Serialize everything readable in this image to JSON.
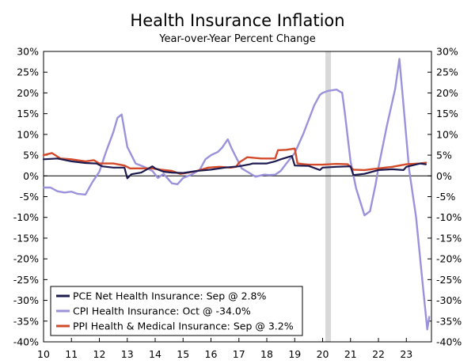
{
  "chart_data": {
    "type": "line",
    "title": "Health Insurance Inflation",
    "subtitle": "Year-over-Year Percent Change",
    "xlabel": "",
    "ylabel": "",
    "x_ticks": [
      "10",
      "11",
      "12",
      "13",
      "14",
      "15",
      "16",
      "17",
      "18",
      "19",
      "20",
      "21",
      "22",
      "23"
    ],
    "x_tick_values": [
      2010,
      2011,
      2012,
      2013,
      2014,
      2015,
      2016,
      2017,
      2018,
      2019,
      2020,
      2021,
      2022,
      2023
    ],
    "xlim": [
      2010,
      2023.9
    ],
    "y_ticks": [
      30,
      25,
      20,
      15,
      10,
      5,
      0,
      -5,
      -10,
      -15,
      -20,
      -25,
      -30,
      -35,
      -40
    ],
    "y_tick_labels": [
      "30%",
      "25%",
      "20%",
      "15%",
      "10%",
      "5%",
      "0%",
      "-5%",
      "-10%",
      "-15%",
      "-20%",
      "-25%",
      "-30%",
      "-35%",
      "-40%"
    ],
    "ylim": [
      -40,
      30
    ],
    "grid": false,
    "recession_shading": [
      [
        2020.1,
        2020.3
      ]
    ],
    "legend_position": "bottom-left",
    "series": [
      {
        "name": "PCE Net Health Insurance: Sep @ 2.8%",
        "color": "#1c1a4e",
        "x": [
          2010.0,
          2010.5,
          2011.0,
          2011.5,
          2011.9,
          2012.1,
          2012.5,
          2012.9,
          2013.0,
          2013.15,
          2013.5,
          2013.9,
          2014.0,
          2014.3,
          2014.6,
          2015.0,
          2015.5,
          2016.0,
          2016.5,
          2017.0,
          2017.4,
          2017.5,
          2018.0,
          2018.3,
          2018.5,
          2018.9,
          2019.0,
          2019.5,
          2019.9,
          2020.0,
          2020.5,
          2021.0,
          2021.1,
          2021.5,
          2022.0,
          2022.5,
          2022.9,
          2023.0,
          2023.5,
          2023.7
        ],
        "y": [
          4.0,
          4.2,
          3.5,
          3.1,
          3.0,
          2.3,
          2.0,
          2.0,
          -0.6,
          0.4,
          0.8,
          2.3,
          1.8,
          1.0,
          0.8,
          0.7,
          1.2,
          1.5,
          2.0,
          2.3,
          2.8,
          3.0,
          3.0,
          3.5,
          4.0,
          4.8,
          2.5,
          2.4,
          1.4,
          2.0,
          2.2,
          2.3,
          0.2,
          0.5,
          1.4,
          1.6,
          1.4,
          2.2,
          3.0,
          2.8
        ]
      },
      {
        "name": "CPI Health Insurance: Oct @ -34.0%",
        "color": "#9b92dc",
        "x": [
          2010.0,
          2010.25,
          2010.5,
          2010.75,
          2011.0,
          2011.2,
          2011.5,
          2011.75,
          2012.0,
          2012.25,
          2012.5,
          2012.65,
          2012.8,
          2013.0,
          2013.3,
          2013.6,
          2013.9,
          2014.1,
          2014.3,
          2014.6,
          2014.8,
          2015.0,
          2015.3,
          2015.6,
          2015.8,
          2016.0,
          2016.25,
          2016.4,
          2016.6,
          2016.75,
          2016.9,
          2017.1,
          2017.3,
          2017.6,
          2017.9,
          2018.1,
          2018.3,
          2018.5,
          2018.7,
          2019.0,
          2019.3,
          2019.5,
          2019.7,
          2019.9,
          2020.0,
          2020.2,
          2020.5,
          2020.7,
          2020.8,
          2021.0,
          2021.2,
          2021.5,
          2021.7,
          2021.9,
          2022.0,
          2022.3,
          2022.6,
          2022.75,
          2022.9,
          2023.1,
          2023.35,
          2023.6,
          2023.75,
          2023.82
        ],
        "y": [
          -2.8,
          -2.8,
          -3.7,
          -4.0,
          -3.8,
          -4.3,
          -4.5,
          -1.5,
          1.0,
          6.0,
          10.5,
          14.0,
          14.8,
          7.0,
          3.0,
          2.2,
          1.2,
          -0.5,
          0.5,
          -1.8,
          -2.0,
          -0.5,
          0.3,
          1.5,
          4.0,
          5.0,
          5.8,
          6.8,
          8.8,
          6.5,
          4.5,
          1.8,
          1.0,
          -0.2,
          0.3,
          0.2,
          0.3,
          1.2,
          3.0,
          5.5,
          10.0,
          13.5,
          17.0,
          19.5,
          20.0,
          20.5,
          20.8,
          20.0,
          15.0,
          3.5,
          -3.0,
          -9.5,
          -8.5,
          -2.0,
          2.0,
          12.0,
          21.0,
          28.2,
          17.0,
          1.5,
          -10.0,
          -27.0,
          -37.0,
          -34.0
        ]
      },
      {
        "name": "PPI Health & Medical Insurance: Sep @ 3.2%",
        "color": "#d34a2b",
        "x": [
          2010.0,
          2010.3,
          2010.6,
          2011.0,
          2011.5,
          2011.8,
          2012.0,
          2012.5,
          2012.9,
          2013.1,
          2013.5,
          2013.9,
          2014.2,
          2014.6,
          2014.9,
          2015.2,
          2015.5,
          2015.9,
          2016.3,
          2016.7,
          2016.9,
          2017.0,
          2017.3,
          2017.8,
          2018.3,
          2018.4,
          2018.7,
          2019.0,
          2019.1,
          2019.5,
          2020.0,
          2020.5,
          2020.9,
          2021.1,
          2021.5,
          2022.0,
          2022.5,
          2023.0,
          2023.5,
          2023.7
        ],
        "y": [
          5.0,
          5.5,
          4.2,
          4.0,
          3.5,
          3.8,
          3.0,
          3.0,
          2.5,
          1.8,
          1.8,
          1.8,
          1.5,
          1.2,
          0.5,
          0.8,
          1.2,
          2.0,
          2.2,
          2.0,
          2.2,
          3.2,
          4.5,
          4.2,
          4.2,
          6.2,
          6.3,
          6.6,
          3.0,
          2.7,
          2.7,
          2.9,
          2.8,
          1.5,
          1.4,
          1.8,
          2.2,
          2.8,
          3.0,
          3.2
        ]
      }
    ]
  }
}
